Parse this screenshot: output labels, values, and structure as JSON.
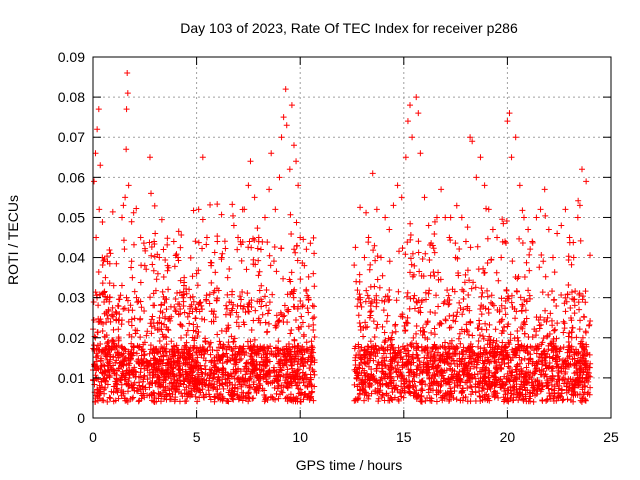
{
  "chart_data": {
    "type": "scatter",
    "title": "Day 103 of 2023, Rate Of TEC Index for receiver p286",
    "xlabel": "GPS time / hours",
    "ylabel": "ROTI / TECUs",
    "xlim": [
      0,
      25
    ],
    "ylim": [
      0,
      0.09
    ],
    "xticks": [
      "0",
      "5",
      "10",
      "15",
      "20",
      "25"
    ],
    "yticks": [
      "0",
      "0.01",
      "0.02",
      "0.03",
      "0.04",
      "0.05",
      "0.06",
      "0.07",
      "0.08",
      "0.09"
    ],
    "grid": true,
    "marker": "plus",
    "series_color": "#ff0000",
    "data_gap_hours": [
      10.7,
      12.6
    ],
    "series": [
      {
        "points": [
          [
            0.05,
            0.059
          ],
          [
            0.12,
            0.066
          ],
          [
            0.2,
            0.072
          ],
          [
            0.28,
            0.077
          ],
          [
            0.35,
            0.063
          ],
          [
            0.15,
            0.045
          ],
          [
            0.3,
            0.052
          ],
          [
            0.45,
            0.04
          ],
          [
            0.6,
            0.035
          ],
          [
            0.8,
            0.03
          ],
          [
            1.0,
            0.033
          ],
          [
            1.2,
            0.028
          ],
          [
            1.4,
            0.05
          ],
          [
            1.55,
            0.055
          ],
          [
            1.62,
            0.077
          ],
          [
            1.65,
            0.086
          ],
          [
            1.68,
            0.081
          ],
          [
            1.72,
            0.058
          ],
          [
            1.6,
            0.067
          ],
          [
            1.9,
            0.035
          ],
          [
            2.1,
            0.03
          ],
          [
            2.3,
            0.045
          ],
          [
            2.5,
            0.038
          ],
          [
            2.75,
            0.065
          ],
          [
            2.8,
            0.056
          ],
          [
            3.0,
            0.046
          ],
          [
            3.2,
            0.04
          ],
          [
            3.4,
            0.042
          ],
          [
            3.6,
            0.038
          ],
          [
            3.9,
            0.044
          ],
          [
            4.1,
            0.04
          ],
          [
            4.4,
            0.035
          ],
          [
            4.7,
            0.03
          ],
          [
            5.0,
            0.036
          ],
          [
            5.1,
            0.052
          ],
          [
            5.3,
            0.065
          ],
          [
            5.5,
            0.045
          ],
          [
            5.7,
            0.038
          ],
          [
            6.0,
            0.044
          ],
          [
            6.2,
            0.04
          ],
          [
            6.5,
            0.035
          ],
          [
            6.8,
            0.048
          ],
          [
            7.0,
            0.045
          ],
          [
            7.3,
            0.052
          ],
          [
            7.5,
            0.058
          ],
          [
            7.6,
            0.064
          ],
          [
            7.8,
            0.055
          ],
          [
            8.0,
            0.045
          ],
          [
            8.3,
            0.05
          ],
          [
            8.5,
            0.057
          ],
          [
            8.6,
            0.066
          ],
          [
            8.8,
            0.052
          ],
          [
            9.0,
            0.06
          ],
          [
            9.1,
            0.07
          ],
          [
            9.2,
            0.075
          ],
          [
            9.3,
            0.082
          ],
          [
            9.35,
            0.073
          ],
          [
            9.5,
            0.062
          ],
          [
            9.6,
            0.078
          ],
          [
            9.7,
            0.068
          ],
          [
            9.8,
            0.064
          ],
          [
            9.9,
            0.058
          ],
          [
            10.0,
            0.045
          ],
          [
            10.2,
            0.038
          ],
          [
            10.4,
            0.03
          ],
          [
            10.6,
            0.028
          ],
          [
            12.7,
            0.034
          ],
          [
            12.9,
            0.03
          ],
          [
            13.1,
            0.04
          ],
          [
            13.3,
            0.045
          ],
          [
            13.5,
            0.061
          ],
          [
            13.7,
            0.052
          ],
          [
            13.9,
            0.04
          ],
          [
            14.1,
            0.05
          ],
          [
            14.3,
            0.047
          ],
          [
            14.5,
            0.053
          ],
          [
            14.7,
            0.058
          ],
          [
            14.9,
            0.055
          ],
          [
            15.1,
            0.065
          ],
          [
            15.2,
            0.074
          ],
          [
            15.3,
            0.078
          ],
          [
            15.4,
            0.07
          ],
          [
            15.6,
            0.08
          ],
          [
            15.7,
            0.076
          ],
          [
            15.8,
            0.066
          ],
          [
            16.0,
            0.055
          ],
          [
            16.2,
            0.048
          ],
          [
            16.4,
            0.043
          ],
          [
            16.6,
            0.05
          ],
          [
            16.8,
            0.057
          ],
          [
            17.0,
            0.05
          ],
          [
            17.2,
            0.045
          ],
          [
            17.5,
            0.04
          ],
          [
            17.8,
            0.05
          ],
          [
            18.0,
            0.044
          ],
          [
            18.2,
            0.07
          ],
          [
            18.3,
            0.069
          ],
          [
            18.5,
            0.06
          ],
          [
            18.7,
            0.065
          ],
          [
            18.9,
            0.058
          ],
          [
            19.1,
            0.052
          ],
          [
            19.3,
            0.047
          ],
          [
            19.5,
            0.045
          ],
          [
            19.7,
            0.04
          ],
          [
            20.0,
            0.074
          ],
          [
            20.1,
            0.076
          ],
          [
            20.2,
            0.065
          ],
          [
            20.4,
            0.07
          ],
          [
            20.6,
            0.058
          ],
          [
            20.8,
            0.05
          ],
          [
            21.0,
            0.047
          ],
          [
            21.2,
            0.044
          ],
          [
            21.4,
            0.05
          ],
          [
            21.6,
            0.052
          ],
          [
            21.8,
            0.057
          ],
          [
            22.0,
            0.047
          ],
          [
            22.2,
            0.04
          ],
          [
            22.4,
            0.046
          ],
          [
            22.6,
            0.048
          ],
          [
            22.8,
            0.052
          ],
          [
            23.0,
            0.045
          ],
          [
            23.2,
            0.04
          ],
          [
            23.4,
            0.05
          ],
          [
            23.5,
            0.053
          ],
          [
            23.6,
            0.062
          ],
          [
            23.8,
            0.059
          ]
        ]
      }
    ]
  }
}
